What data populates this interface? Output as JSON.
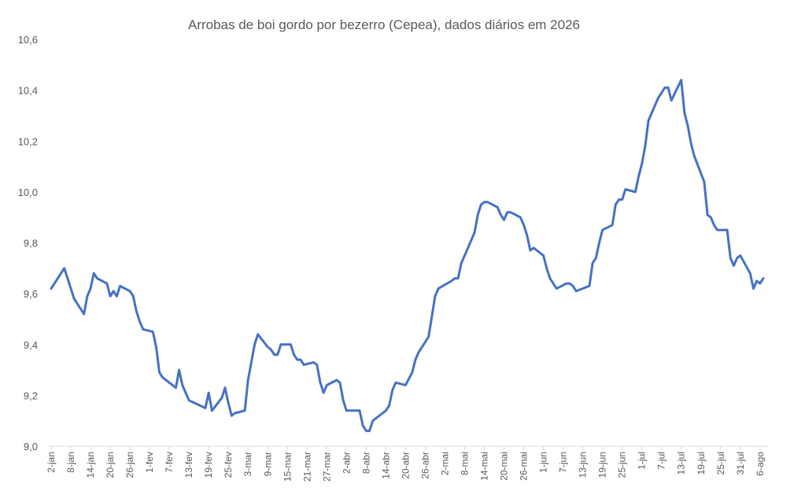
{
  "chart_data": {
    "type": "line",
    "title": "Arrobas de boi gordo por bezerro (Cepea), dados diários em 2026",
    "xlabel": "",
    "ylabel": "",
    "ylim": [
      9.0,
      10.6
    ],
    "y_ticks": [
      "9,0",
      "9,2",
      "9,4",
      "9,6",
      "9,8",
      "10,0",
      "10,2",
      "10,4",
      "10,6"
    ],
    "x_ticks": [
      "2-jan",
      "8-jan",
      "14-jan",
      "20-jan",
      "26-jan",
      "1-fev",
      "7-fev",
      "13-fev",
      "19-fev",
      "25-fev",
      "3-mar",
      "9-mar",
      "15-mar",
      "21-mar",
      "27-mar",
      "2-abr",
      "8-abr",
      "14-abr",
      "20-abr",
      "26-abr",
      "2-mai",
      "8-mai",
      "14-mai",
      "20-mai",
      "26-mai",
      "1-jun",
      "7-jun",
      "13-jun",
      "19-jun",
      "25-jun",
      "1-jul",
      "7-jul",
      "13-jul",
      "19-jul",
      "25-jul",
      "31-jul",
      "6-ago"
    ],
    "grid": false,
    "legend": "none",
    "series": [
      {
        "color": "#4472c4",
        "points": [
          [
            "2026-01-02",
            9.62
          ],
          [
            "2026-01-06",
            9.7
          ],
          [
            "2026-01-07",
            9.66
          ],
          [
            "2026-01-08",
            9.62
          ],
          [
            "2026-01-09",
            9.58
          ],
          [
            "2026-01-12",
            9.52
          ],
          [
            "2026-01-13",
            9.59
          ],
          [
            "2026-01-14",
            9.62
          ],
          [
            "2026-01-15",
            9.68
          ],
          [
            "2026-01-16",
            9.66
          ],
          [
            "2026-01-19",
            9.64
          ],
          [
            "2026-01-20",
            9.59
          ],
          [
            "2026-01-21",
            9.61
          ],
          [
            "2026-01-22",
            9.59
          ],
          [
            "2026-01-23",
            9.63
          ],
          [
            "2026-01-26",
            9.61
          ],
          [
            "2026-01-27",
            9.59
          ],
          [
            "2026-01-28",
            9.53
          ],
          [
            "2026-01-29",
            9.49
          ],
          [
            "2026-01-30",
            9.46
          ],
          [
            "2026-02-02",
            9.45
          ],
          [
            "2026-02-03",
            9.39
          ],
          [
            "2026-02-04",
            9.29
          ],
          [
            "2026-02-05",
            9.27
          ],
          [
            "2026-02-06",
            9.26
          ],
          [
            "2026-02-09",
            9.23
          ],
          [
            "2026-02-10",
            9.3
          ],
          [
            "2026-02-11",
            9.24
          ],
          [
            "2026-02-12",
            9.21
          ],
          [
            "2026-02-13",
            9.18
          ],
          [
            "2026-02-18",
            9.15
          ],
          [
            "2026-02-19",
            9.21
          ],
          [
            "2026-02-20",
            9.14
          ],
          [
            "2026-02-23",
            9.19
          ],
          [
            "2026-02-24",
            9.23
          ],
          [
            "2026-02-25",
            9.17
          ],
          [
            "2026-02-26",
            9.12
          ],
          [
            "2026-02-27",
            9.13
          ],
          [
            "2026-03-02",
            9.14
          ],
          [
            "2026-03-03",
            9.26
          ],
          [
            "2026-03-04",
            9.33
          ],
          [
            "2026-03-05",
            9.4
          ],
          [
            "2026-03-06",
            9.44
          ],
          [
            "2026-03-09",
            9.39
          ],
          [
            "2026-03-10",
            9.38
          ],
          [
            "2026-03-11",
            9.36
          ],
          [
            "2026-03-12",
            9.36
          ],
          [
            "2026-03-13",
            9.4
          ],
          [
            "2026-03-16",
            9.4
          ],
          [
            "2026-03-17",
            9.36
          ],
          [
            "2026-03-18",
            9.34
          ],
          [
            "2026-03-19",
            9.34
          ],
          [
            "2026-03-20",
            9.32
          ],
          [
            "2026-03-23",
            9.33
          ],
          [
            "2026-03-24",
            9.32
          ],
          [
            "2026-03-25",
            9.25
          ],
          [
            "2026-03-26",
            9.21
          ],
          [
            "2026-03-27",
            9.24
          ],
          [
            "2026-03-30",
            9.26
          ],
          [
            "2026-03-31",
            9.25
          ],
          [
            "2026-04-01",
            9.18
          ],
          [
            "2026-04-02",
            9.14
          ],
          [
            "2026-04-06",
            9.14
          ],
          [
            "2026-04-07",
            9.08
          ],
          [
            "2026-04-08",
            9.06
          ],
          [
            "2026-04-09",
            9.06
          ],
          [
            "2026-04-10",
            9.1
          ],
          [
            "2026-04-13",
            9.13
          ],
          [
            "2026-04-14",
            9.14
          ],
          [
            "2026-04-15",
            9.16
          ],
          [
            "2026-04-16",
            9.22
          ],
          [
            "2026-04-17",
            9.25
          ],
          [
            "2026-04-20",
            9.24
          ],
          [
            "2026-04-22",
            9.29
          ],
          [
            "2026-04-23",
            9.34
          ],
          [
            "2026-04-24",
            9.37
          ],
          [
            "2026-04-27",
            9.43
          ],
          [
            "2026-04-28",
            9.51
          ],
          [
            "2026-04-29",
            9.59
          ],
          [
            "2026-04-30",
            9.62
          ],
          [
            "2026-05-04",
            9.65
          ],
          [
            "2026-05-05",
            9.66
          ],
          [
            "2026-05-06",
            9.66
          ],
          [
            "2026-05-07",
            9.72
          ],
          [
            "2026-05-08",
            9.75
          ],
          [
            "2026-05-11",
            9.84
          ],
          [
            "2026-05-12",
            9.91
          ],
          [
            "2026-05-13",
            9.95
          ],
          [
            "2026-05-14",
            9.96
          ],
          [
            "2026-05-15",
            9.96
          ],
          [
            "2026-05-18",
            9.94
          ],
          [
            "2026-05-19",
            9.91
          ],
          [
            "2026-05-20",
            9.89
          ],
          [
            "2026-05-21",
            9.92
          ],
          [
            "2026-05-22",
            9.92
          ],
          [
            "2026-05-25",
            9.9
          ],
          [
            "2026-05-26",
            9.87
          ],
          [
            "2026-05-27",
            9.83
          ],
          [
            "2026-05-28",
            9.77
          ],
          [
            "2026-05-29",
            9.78
          ],
          [
            "2026-06-01",
            9.75
          ],
          [
            "2026-06-02",
            9.7
          ],
          [
            "2026-06-03",
            9.66
          ],
          [
            "2026-06-05",
            9.62
          ],
          [
            "2026-06-08",
            9.64
          ],
          [
            "2026-06-09",
            9.64
          ],
          [
            "2026-06-10",
            9.63
          ],
          [
            "2026-06-11",
            9.61
          ],
          [
            "2026-06-15",
            9.63
          ],
          [
            "2026-06-16",
            9.72
          ],
          [
            "2026-06-17",
            9.74
          ],
          [
            "2026-06-18",
            9.8
          ],
          [
            "2026-06-19",
            9.85
          ],
          [
            "2026-06-22",
            9.87
          ],
          [
            "2026-06-23",
            9.95
          ],
          [
            "2026-06-24",
            9.97
          ],
          [
            "2026-06-25",
            9.97
          ],
          [
            "2026-06-26",
            10.01
          ],
          [
            "2026-06-29",
            10.0
          ],
          [
            "2026-06-30",
            10.06
          ],
          [
            "2026-07-01",
            10.11
          ],
          [
            "2026-07-02",
            10.18
          ],
          [
            "2026-07-03",
            10.28
          ],
          [
            "2026-07-06",
            10.37
          ],
          [
            "2026-07-07",
            10.39
          ],
          [
            "2026-07-08",
            10.41
          ],
          [
            "2026-07-09",
            10.41
          ],
          [
            "2026-07-10",
            10.36
          ],
          [
            "2026-07-13",
            10.44
          ],
          [
            "2026-07-14",
            10.31
          ],
          [
            "2026-07-15",
            10.26
          ],
          [
            "2026-07-16",
            10.19
          ],
          [
            "2026-07-17",
            10.14
          ],
          [
            "2026-07-20",
            10.04
          ],
          [
            "2026-07-21",
            9.91
          ],
          [
            "2026-07-22",
            9.9
          ],
          [
            "2026-07-23",
            9.87
          ],
          [
            "2026-07-24",
            9.85
          ],
          [
            "2026-07-27",
            9.85
          ],
          [
            "2026-07-28",
            9.74
          ],
          [
            "2026-07-29",
            9.71
          ],
          [
            "2026-07-30",
            9.74
          ],
          [
            "2026-07-31",
            9.75
          ],
          [
            "2026-08-03",
            9.68
          ],
          [
            "2026-08-04",
            9.62
          ],
          [
            "2026-08-05",
            9.65
          ],
          [
            "2026-08-06",
            9.64
          ],
          [
            "2026-08-07",
            9.66
          ]
        ]
      }
    ]
  }
}
